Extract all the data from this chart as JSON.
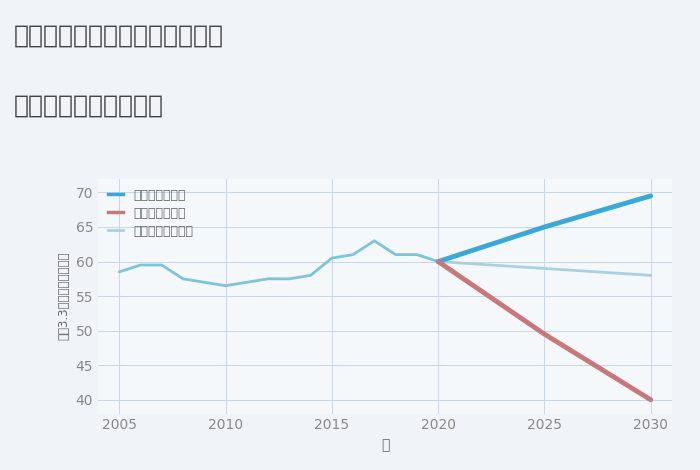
{
  "title_line1": "三重県四日市市南いかるが町の",
  "title_line2": "中古戸建ての価格推移",
  "xlabel": "年",
  "ylabel": "坪（3.3㎡）単価（万円）",
  "background_color": "#f0f4f8",
  "plot_bg_color": "#f5f8fb",
  "grid_color": "#c8d8e8",
  "historical": {
    "years": [
      2005,
      2006,
      2007,
      2008,
      2009,
      2010,
      2011,
      2012,
      2013,
      2014,
      2015,
      2016,
      2017,
      2018,
      2019,
      2020
    ],
    "values": [
      58.5,
      59.5,
      59.5,
      57.5,
      57.0,
      56.5,
      57.0,
      57.5,
      57.5,
      58.0,
      60.5,
      61.0,
      63.0,
      61.0,
      61.0,
      60.0
    ],
    "color": "#7dc4db",
    "linewidth": 2.0
  },
  "good": {
    "years": [
      2020,
      2025,
      2030
    ],
    "values": [
      60.0,
      65.0,
      69.5
    ],
    "color": "#3aa8d8",
    "linewidth": 3.5,
    "label": "グッドシナリオ"
  },
  "bad": {
    "years": [
      2020,
      2025,
      2030
    ],
    "values": [
      60.0,
      49.5,
      40.0
    ],
    "color": "#c87878",
    "linewidth": 3.5,
    "label": "バッドシナリオ"
  },
  "normal": {
    "years": [
      2020,
      2025,
      2030
    ],
    "values": [
      60.0,
      59.0,
      58.0
    ],
    "color": "#a8d0e0",
    "linewidth": 2.0,
    "label": "ノーマルシナリオ"
  },
  "ylim": [
    38,
    72
  ],
  "yticks": [
    40,
    45,
    50,
    55,
    60,
    65,
    70
  ],
  "xlim": [
    2004,
    2031
  ],
  "xticks": [
    2005,
    2010,
    2015,
    2020,
    2025,
    2030
  ],
  "title_fontsize": 18,
  "tick_fontsize": 10,
  "label_fontsize": 10,
  "legend_fontsize": 9
}
